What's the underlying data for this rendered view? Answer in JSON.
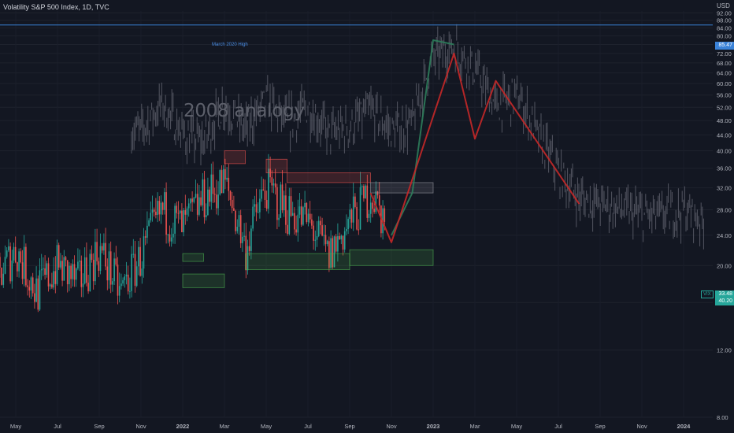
{
  "header": {
    "title": "Volatility S&P 500 Index, 1D, TVC",
    "currency": "USD"
  },
  "annotation": {
    "text": "2008 analogy"
  },
  "horizontal_line": {
    "label": "March 2020 High",
    "value": 85.47,
    "value_label": "85.47",
    "color": "#3a82d8"
  },
  "price_tags": {
    "last": "33.48",
    "previous": "40.20",
    "symbol": "VIX"
  },
  "colors": {
    "background": "#131722",
    "up": "#26a69a",
    "down": "#ef5350",
    "ghost": "#5d606b",
    "projection_up": "#2e7d5b",
    "projection_down": "#c62828",
    "zone_red": "#ef5350",
    "zone_green": "#4caf50",
    "zone_gray": "#9598a1"
  },
  "chart_data": {
    "type": "candlestick",
    "title": "Volatility S&P 500 Index, 1D, TVC",
    "y_scale": "log",
    "ylim": [
      8,
      93
    ],
    "y_ticks": [
      8,
      12,
      16,
      20,
      24,
      28,
      32,
      36,
      40,
      44,
      48,
      52,
      56,
      60,
      64,
      68,
      72,
      76,
      80,
      84,
      88,
      92
    ],
    "y_tick_labels": [
      "8.00",
      "12.00",
      "16.00",
      "20.00",
      "24.00",
      "28.00",
      "32.00",
      "36.00",
      "40.00",
      "44.00",
      "48.00",
      "52.00",
      "56.00",
      "60.00",
      "64.00",
      "68.00",
      "72.00",
      "76.00",
      "80.00",
      "84.00",
      "88.00",
      "92.00"
    ],
    "x_ticks": [
      "May",
      "Jul",
      "Sep",
      "Nov",
      "2022",
      "Mar",
      "May",
      "Jul",
      "Sep",
      "Nov",
      "2023",
      "Mar",
      "May",
      "Jul",
      "Sep",
      "Nov",
      "2024"
    ],
    "x_tick_bold": [
      false,
      false,
      false,
      false,
      true,
      false,
      false,
      false,
      false,
      false,
      true,
      false,
      false,
      false,
      false,
      false,
      true
    ],
    "grid": true,
    "series": [
      {
        "kind": "candlestick",
        "x_range": [
          "2021-04",
          "2022-10"
        ],
        "path": [
          [
            "2021-04",
            18
          ],
          [
            "2021-05",
            22
          ],
          [
            "2021-06",
            17
          ],
          [
            "2021-07",
            20
          ],
          [
            "2021-08",
            18
          ],
          [
            "2021-09",
            22
          ],
          [
            "2021-10",
            17
          ],
          [
            "2021-11",
            21
          ],
          [
            "2021-12",
            28
          ],
          [
            "2022-01",
            25
          ],
          [
            "2022-02",
            30
          ],
          [
            "2022-03",
            33
          ],
          [
            "2022-04",
            22
          ],
          [
            "2022-05",
            32
          ],
          [
            "2022-06",
            28
          ],
          [
            "2022-07",
            26
          ],
          [
            "2022-08",
            21
          ],
          [
            "2022-09",
            26
          ],
          [
            "2022-10",
            31
          ],
          [
            "2022-11",
            24
          ],
          [
            "2022-12",
            22
          ]
        ]
      },
      {
        "kind": "ghost",
        "name": "",
        "path": [
          [
            "2021-11",
            45
          ],
          [
            "2021-12",
            53
          ],
          [
            "2022-01",
            44
          ],
          [
            "2022-02",
            42
          ],
          [
            "2022-03",
            53
          ],
          [
            "2022-04",
            45
          ],
          [
            "2022-05",
            54
          ],
          [
            "2022-06",
            47
          ],
          [
            "2022-07",
            52
          ],
          [
            "2022-08",
            44
          ],
          [
            "2022-09",
            46
          ],
          [
            "2022-10",
            51
          ],
          [
            "2022-11",
            45
          ],
          [
            "2022-12",
            47
          ],
          [
            "2023-01",
            70
          ],
          [
            "2023-02",
            75
          ],
          [
            "2023-03",
            65
          ],
          [
            "2023-04",
            52
          ],
          [
            "2023-05",
            56
          ],
          [
            "2023-06",
            44
          ],
          [
            "2023-07",
            35
          ],
          [
            "2023-08",
            30
          ],
          [
            "2023-09",
            29
          ],
          [
            "2023-10",
            28
          ],
          [
            "2023-11",
            27
          ],
          [
            "2023-12",
            27
          ],
          [
            "2024-01",
            28
          ],
          [
            "2024-02",
            26
          ]
        ]
      }
    ],
    "projection_up": [
      [
        "2022-11",
        24
      ],
      [
        "2022-12",
        31
      ],
      [
        "2023-01",
        78
      ],
      [
        "2023-02",
        76
      ]
    ],
    "projection_down": [
      [
        "2022-10",
        31
      ],
      [
        "2022-11",
        23
      ],
      [
        "2023-02",
        72
      ],
      [
        "2023-03",
        43
      ],
      [
        "2023-04",
        61
      ],
      [
        "2023-08",
        29
      ]
    ],
    "zones": [
      {
        "color": "red",
        "from": "2022-03",
        "to": "2022-04",
        "low": 37,
        "high": 40
      },
      {
        "color": "red",
        "from": "2022-05",
        "to": "2022-06",
        "low": 35,
        "high": 38
      },
      {
        "color": "red",
        "from": "2022-06",
        "to": "2022-10",
        "low": 33,
        "high": 35
      },
      {
        "color": "gray",
        "from": "2022-10",
        "to": "2023-01",
        "low": 31,
        "high": 33
      },
      {
        "color": "green",
        "from": "2022-01",
        "to": "2022-02",
        "low": 20.5,
        "high": 21.5
      },
      {
        "color": "green",
        "from": "2022-01",
        "to": "2022-03",
        "low": 17.5,
        "high": 19
      },
      {
        "color": "green",
        "from": "2022-04",
        "to": "2022-09",
        "low": 19.5,
        "high": 21.5
      },
      {
        "color": "green",
        "from": "2022-09",
        "to": "2023-01",
        "low": 20,
        "high": 22
      }
    ]
  }
}
